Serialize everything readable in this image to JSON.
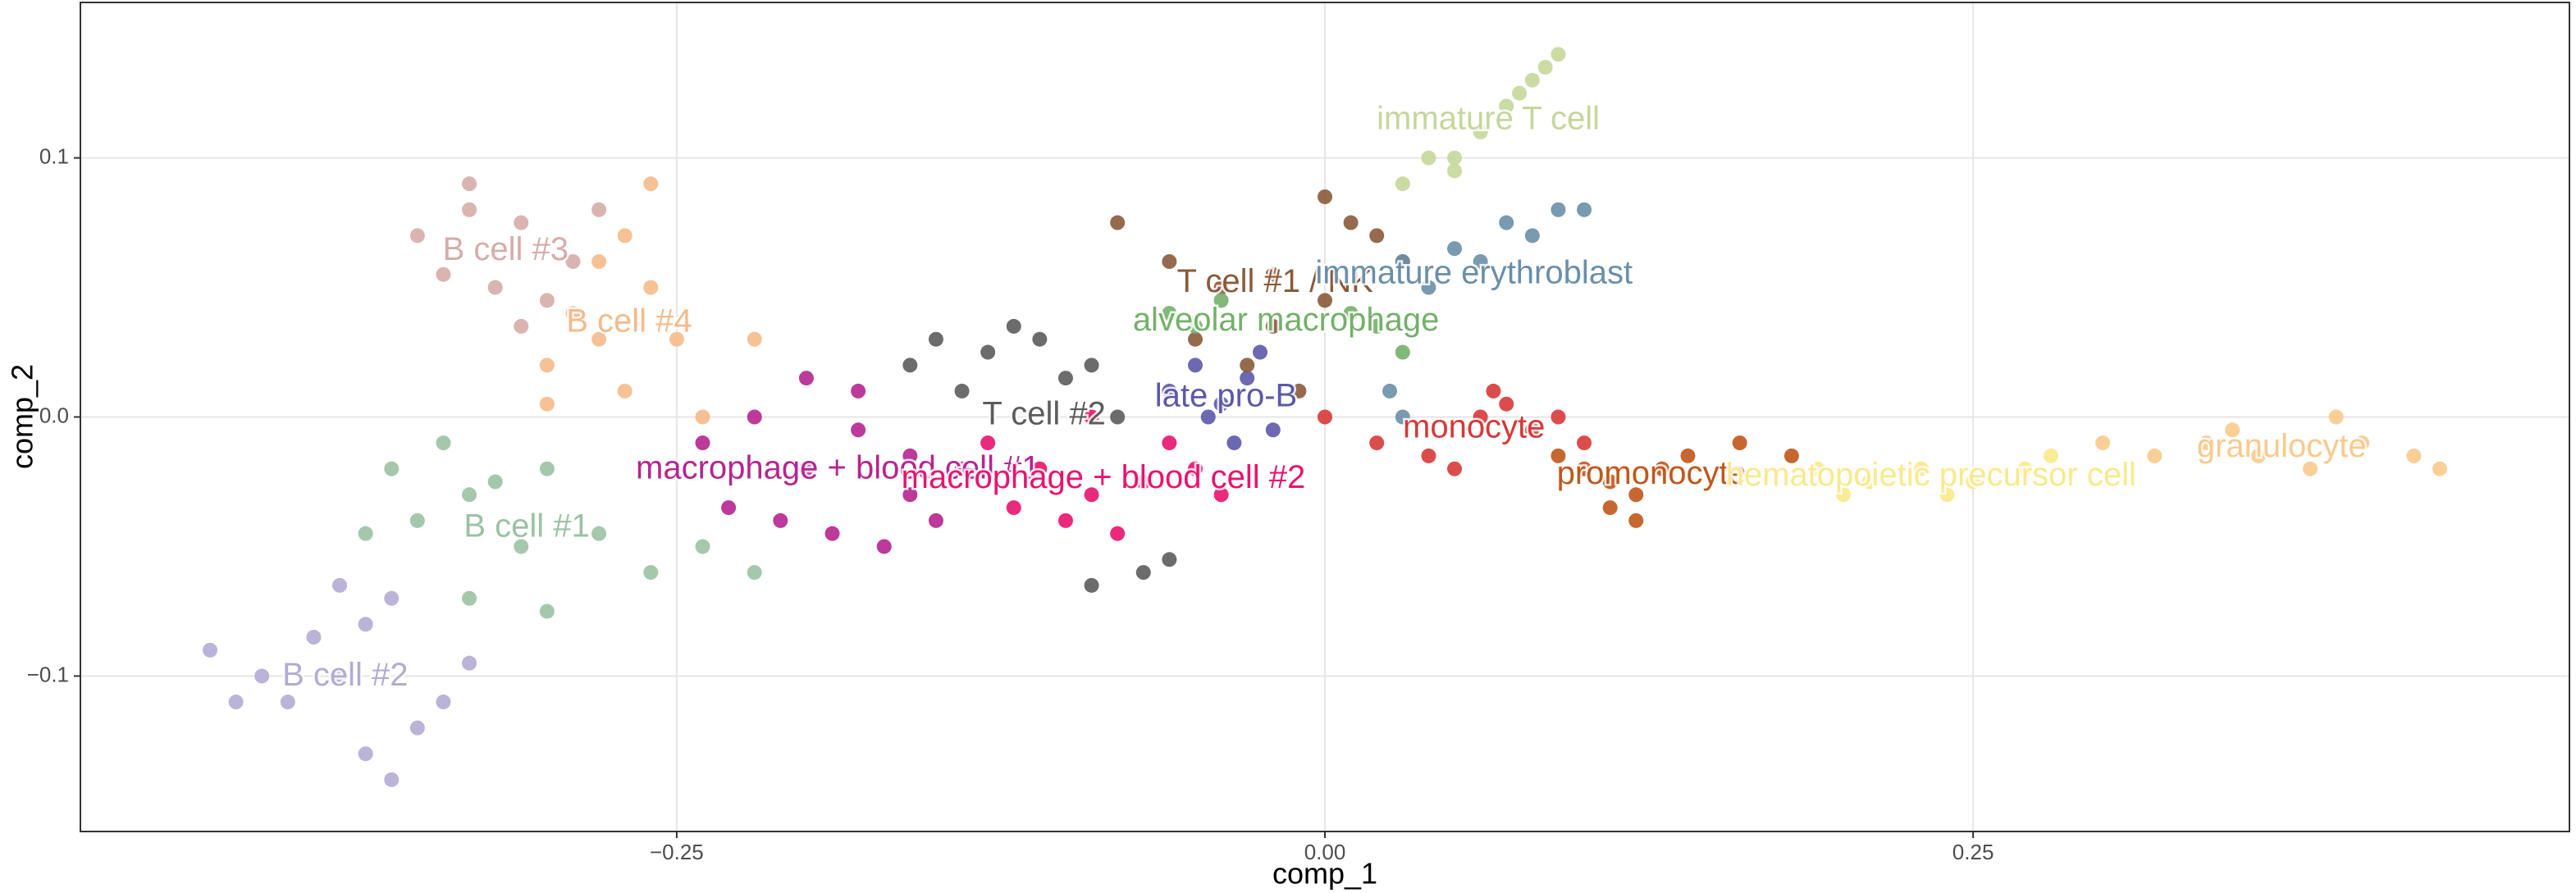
{
  "chart_data": {
    "type": "scatter",
    "x_label": "comp_1",
    "y_label": "comp_2",
    "xlim": [
      -0.48,
      0.48
    ],
    "ylim": [
      -0.16,
      0.16
    ],
    "xticks": [
      {
        "value": -0.25,
        "label": "−0.25"
      },
      {
        "value": 0,
        "label": "0.00"
      },
      0.25
    ],
    "yticks": [
      {
        "value": -0.1,
        "label": "−0.1"
      },
      {
        "value": 0,
        "label": "0.0"
      },
      0.1
    ],
    "grid": true,
    "series": [
      {
        "name": "B cell #1",
        "color": "#9bc2a3",
        "x": [
          -0.36,
          -0.34,
          -0.32,
          -0.3,
          -0.33,
          -0.35,
          -0.31,
          -0.28,
          -0.26,
          -0.24,
          -0.3,
          -0.33,
          -0.37,
          -0.22
        ],
        "values": [
          -0.02,
          -0.01,
          -0.025,
          -0.02,
          -0.03,
          -0.04,
          -0.05,
          -0.045,
          -0.06,
          -0.05,
          -0.075,
          -0.07,
          -0.045,
          -0.06
        ]
      },
      {
        "name": "B cell #2",
        "color": "#b4abd4",
        "x": [
          -0.43,
          -0.41,
          -0.39,
          -0.37,
          -0.4,
          -0.38,
          -0.36,
          -0.35,
          -0.37,
          -0.34,
          -0.36,
          -0.42,
          -0.38,
          -0.33
        ],
        "values": [
          -0.09,
          -0.1,
          -0.085,
          -0.08,
          -0.11,
          -0.1,
          -0.07,
          -0.12,
          -0.13,
          -0.11,
          -0.14,
          -0.11,
          -0.065,
          -0.095
        ]
      },
      {
        "name": "B cell #3",
        "color": "#d6aca9",
        "x": [
          -0.35,
          -0.33,
          -0.31,
          -0.29,
          -0.34,
          -0.32,
          -0.3,
          -0.33,
          -0.31,
          -0.28
        ],
        "values": [
          0.07,
          0.08,
          0.075,
          0.06,
          0.055,
          0.05,
          0.045,
          0.09,
          0.035,
          0.08
        ]
      },
      {
        "name": "B cell #4",
        "color": "#f5ba8a",
        "x": [
          -0.3,
          -0.28,
          -0.26,
          -0.27,
          -0.25,
          -0.29,
          -0.27,
          -0.24,
          -0.22,
          -0.26,
          -0.28,
          -0.3
        ],
        "values": [
          0.02,
          0.03,
          0.05,
          0.07,
          0.03,
          0.04,
          0.01,
          0.0,
          0.03,
          0.09,
          0.06,
          0.005
        ]
      },
      {
        "name": "T cell #2",
        "color": "#5c5c5c",
        "x": [
          -0.15,
          -0.13,
          -0.11,
          -0.09,
          -0.14,
          -0.12,
          -0.1,
          -0.08,
          -0.07,
          -0.06,
          -0.09,
          -0.16
        ],
        "values": [
          0.03,
          0.025,
          0.03,
          0.02,
          0.01,
          0.035,
          0.015,
          0.0,
          -0.06,
          -0.055,
          -0.065,
          0.02
        ]
      },
      {
        "name": "macrophage + blood cell #1",
        "color": "#b5258f",
        "x": [
          -0.24,
          -0.22,
          -0.2,
          -0.18,
          -0.16,
          -0.14,
          -0.21,
          -0.19,
          -0.17,
          -0.15,
          -0.23,
          -0.18,
          -0.2,
          -0.16
        ],
        "values": [
          -0.01,
          0.0,
          -0.02,
          -0.005,
          -0.03,
          -0.02,
          -0.04,
          -0.045,
          -0.05,
          -0.04,
          -0.035,
          0.01,
          0.015,
          -0.015
        ]
      },
      {
        "name": "macrophage + blood cell #2",
        "color": "#e8136e",
        "x": [
          -0.13,
          -0.11,
          -0.09,
          -0.07,
          -0.05,
          -0.1,
          -0.08,
          -0.12,
          -0.06,
          -0.04,
          -0.09
        ],
        "values": [
          -0.01,
          -0.02,
          -0.03,
          -0.025,
          -0.02,
          -0.04,
          -0.045,
          -0.035,
          -0.01,
          -0.03,
          0.0
        ]
      },
      {
        "name": "late pro-B",
        "color": "#5c58a8",
        "x": [
          -0.06,
          -0.05,
          -0.04,
          -0.03,
          -0.02,
          -0.045,
          -0.035,
          -0.025
        ],
        "values": [
          0.01,
          0.02,
          0.005,
          0.015,
          -0.005,
          0.0,
          -0.01,
          0.025
        ]
      },
      {
        "name": "T cell #1 / NK",
        "color": "#8a5a3a",
        "x": [
          -0.08,
          -0.06,
          -0.04,
          -0.02,
          0.0,
          0.02,
          -0.03,
          -0.01,
          0.01,
          0.03,
          -0.05,
          0.0,
          -0.02
        ],
        "values": [
          0.075,
          0.06,
          0.05,
          0.035,
          0.045,
          0.07,
          0.02,
          0.01,
          0.075,
          0.06,
          0.03,
          0.085,
          0.055
        ]
      },
      {
        "name": "immature erythroblast",
        "color": "#6a8fa9",
        "x": [
          0.03,
          0.05,
          0.07,
          0.09,
          0.1,
          0.06,
          0.08,
          0.04,
          0.03,
          0.025
        ],
        "values": [
          0.06,
          0.065,
          0.075,
          0.08,
          0.08,
          0.06,
          0.07,
          0.05,
          0.0,
          0.01
        ]
      },
      {
        "name": "immature T cell",
        "color": "#c4d79a",
        "x": [
          0.03,
          0.04,
          0.05,
          0.06,
          0.07,
          0.08,
          0.09,
          0.085,
          0.075,
          0.05
        ],
        "values": [
          0.09,
          0.1,
          0.1,
          0.11,
          0.12,
          0.13,
          0.14,
          0.135,
          0.125,
          0.095
        ]
      },
      {
        "name": "alveolar macrophage",
        "color": "#74b06a",
        "x": [
          -0.06,
          -0.04,
          0.02,
          0.03,
          -0.05,
          0.01
        ],
        "values": [
          0.04,
          0.045,
          0.035,
          0.025,
          0.035,
          0.04
        ]
      },
      {
        "name": "monocyte",
        "color": "#d73838",
        "x": [
          0.0,
          0.02,
          0.04,
          0.06,
          0.07,
          0.08,
          0.05,
          0.09,
          0.065,
          0.1
        ],
        "values": [
          0.0,
          -0.01,
          -0.015,
          0.0,
          0.005,
          -0.005,
          -0.02,
          0.0,
          0.01,
          -0.01
        ]
      },
      {
        "name": "promonocyte",
        "color": "#c0571b",
        "x": [
          0.09,
          0.1,
          0.11,
          0.12,
          0.13,
          0.14,
          0.11,
          0.12,
          0.16,
          0.18
        ],
        "values": [
          -0.015,
          -0.02,
          -0.025,
          -0.03,
          -0.02,
          -0.015,
          -0.035,
          -0.04,
          -0.01,
          -0.015
        ]
      },
      {
        "name": "hematopoietic precursor cell",
        "color": "#f9e98c",
        "x": [
          0.19,
          0.21,
          0.23,
          0.25,
          0.27,
          0.2,
          0.24,
          0.28
        ],
        "values": [
          -0.02,
          -0.025,
          -0.02,
          -0.025,
          -0.02,
          -0.03,
          -0.03,
          -0.015
        ]
      },
      {
        "name": "granulocyte",
        "color": "#f8ca8c",
        "x": [
          0.3,
          0.32,
          0.34,
          0.36,
          0.38,
          0.4,
          0.42,
          0.43,
          0.35,
          0.39
        ],
        "values": [
          -0.01,
          -0.015,
          -0.01,
          -0.015,
          -0.02,
          -0.01,
          -0.015,
          -0.02,
          -0.005,
          0.0
        ]
      }
    ]
  }
}
